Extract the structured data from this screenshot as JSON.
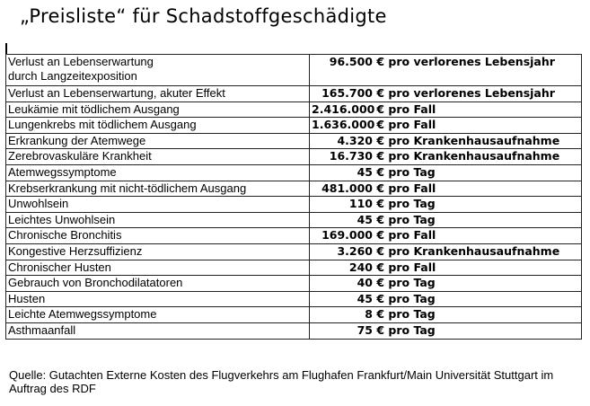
{
  "title": "„Preisliste“ für Schadstoffgeschädigte",
  "rows": [
    {
      "label": "Verlust an Lebenserwartung",
      "label2": "durch Langzeitexposition",
      "amount": "96.500",
      "unit": "€ pro verlorenes Lebensjahr"
    },
    {
      "label": "Verlust an Lebenserwartung, akuter Effekt",
      "amount": "165.700",
      "unit": "€ pro verlorenes Lebensjahr"
    },
    {
      "label": "Leukämie mit tödlichem Ausgang",
      "amount": "2.416.000",
      "unit": "€ pro Fall"
    },
    {
      "label": "Lungenkrebs mit tödlichem Ausgang",
      "amount": "1.636.000",
      "unit": "€ pro Fall"
    },
    {
      "label": "Erkrankung der Atemwege",
      "amount": "4.320",
      "unit": "€ pro Krankenhausaufnahme"
    },
    {
      "label": "Zerebrovaskuläre Krankheit",
      "amount": "16.730",
      "unit": "€ pro Krankenhausaufnahme"
    },
    {
      "label": "Atemwegssymptome",
      "amount": "45",
      "unit": "€ pro Tag"
    },
    {
      "label": "Krebserkrankung mit nicht-tödlichem Ausgang",
      "amount": "481.000",
      "unit": "€ pro Fall"
    },
    {
      "label": "Unwohlsein",
      "amount": "110",
      "unit": "€ pro Tag"
    },
    {
      "label": "Leichtes Unwohlsein",
      "amount": "45",
      "unit": "€ pro Tag"
    },
    {
      "label": "Chronische Bronchitis",
      "amount": "169.000",
      "unit": "€ pro Fall"
    },
    {
      "label": "Kongestive Herzsuffizienz",
      "amount": "3.260",
      "unit": "€ pro Krankenhausaufnahme"
    },
    {
      "label": "Chronischer Husten",
      "amount": "240",
      "unit": "€ pro Fall"
    },
    {
      "label": "Gebrauch von Bronchodilatatoren",
      "amount": "40",
      "unit": "€ pro Tag"
    },
    {
      "label": "Husten",
      "amount": "45",
      "unit": "€ pro Tag"
    },
    {
      "label": "Leichte Atemwegssymptome",
      "amount": "8",
      "unit": "€ pro Tag"
    },
    {
      "label": "Asthmaanfall",
      "amount": "75",
      "unit": "€ pro Tag"
    }
  ],
  "source": "Quelle: Gutachten Externe Kosten des Flugverkehrs am Flughafen Frankfurt/Main Universität Stuttgart im Auftrag des RDF"
}
